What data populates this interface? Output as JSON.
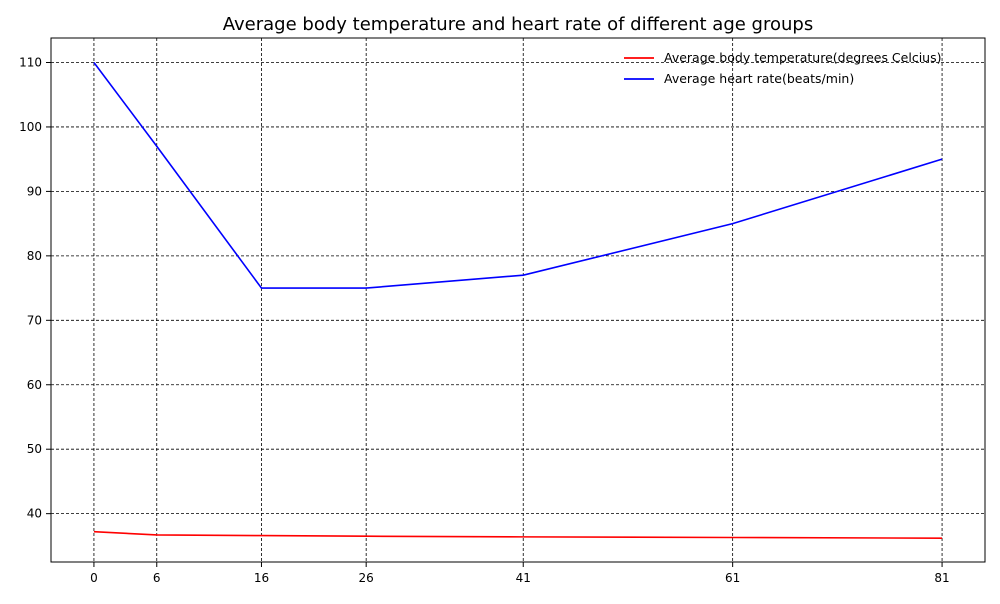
{
  "chart_data": {
    "type": "line",
    "title": "Average body temperature and heart rate of different age groups",
    "xlabel": "",
    "ylabel": "",
    "x": [
      0,
      6,
      16,
      26,
      41,
      61,
      81
    ],
    "x_ticks": [
      "0",
      "6",
      "16",
      "26",
      "41",
      "61",
      "81"
    ],
    "y_ticks": [
      "40",
      "50",
      "60",
      "70",
      "80",
      "90",
      "100",
      "110"
    ],
    "xlim": [
      -4.1,
      85.1
    ],
    "ylim": [
      32.5,
      113.8
    ],
    "grid": true,
    "legend_position": "top-right",
    "series": [
      {
        "name": "Average body temperature(degrees Celcius)",
        "color": "#ff0000",
        "values": [
          37.2,
          36.7,
          36.6,
          36.5,
          36.4,
          36.3,
          36.2
        ]
      },
      {
        "name": "Average heart rate(beats/min)",
        "color": "#0000ff",
        "values": [
          110,
          97,
          75,
          75,
          77,
          85,
          95
        ]
      }
    ]
  }
}
